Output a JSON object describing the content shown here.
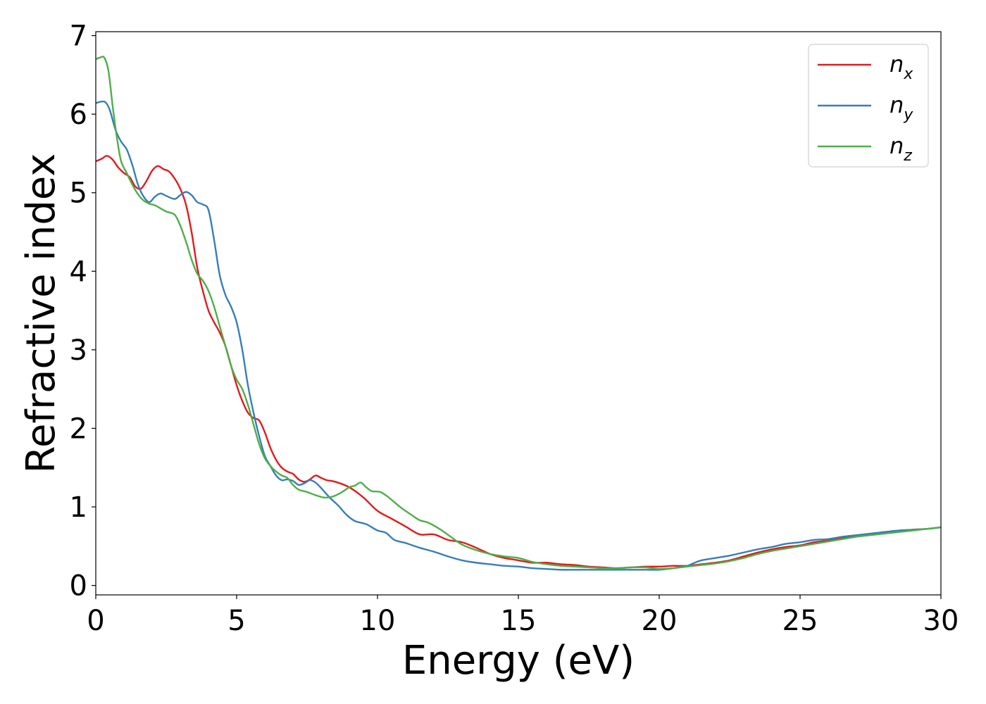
{
  "chart_data": {
    "type": "line",
    "xlabel": "Energy (eV)",
    "ylabel": "Refractive index",
    "xlim": [
      0,
      30
    ],
    "ylim": [
      -0.12,
      7.05
    ],
    "xticks": [
      "0",
      "5",
      "10",
      "15",
      "20",
      "25",
      "30"
    ],
    "yticks": [
      "0",
      "1",
      "2",
      "3",
      "4",
      "5",
      "6",
      "7"
    ],
    "grid": false,
    "legend_position": "top-right",
    "series": [
      {
        "name": "n",
        "subscript": "x",
        "color": "#e41a1c",
        "points": [
          [
            0,
            5.4
          ],
          [
            0.2,
            5.43
          ],
          [
            0.4,
            5.47
          ],
          [
            0.6,
            5.42
          ],
          [
            0.8,
            5.32
          ],
          [
            1.0,
            5.25
          ],
          [
            1.2,
            5.2
          ],
          [
            1.4,
            5.08
          ],
          [
            1.6,
            5.05
          ],
          [
            1.8,
            5.15
          ],
          [
            2.0,
            5.28
          ],
          [
            2.2,
            5.34
          ],
          [
            2.4,
            5.3
          ],
          [
            2.6,
            5.27
          ],
          [
            2.8,
            5.18
          ],
          [
            3.0,
            5.05
          ],
          [
            3.2,
            4.85
          ],
          [
            3.4,
            4.5
          ],
          [
            3.6,
            4.05
          ],
          [
            3.8,
            3.75
          ],
          [
            4.0,
            3.5
          ],
          [
            4.2,
            3.35
          ],
          [
            4.4,
            3.22
          ],
          [
            4.6,
            3.05
          ],
          [
            4.8,
            2.8
          ],
          [
            5.0,
            2.55
          ],
          [
            5.2,
            2.35
          ],
          [
            5.4,
            2.2
          ],
          [
            5.6,
            2.13
          ],
          [
            5.8,
            2.1
          ],
          [
            6.0,
            1.95
          ],
          [
            6.2,
            1.75
          ],
          [
            6.4,
            1.6
          ],
          [
            6.6,
            1.5
          ],
          [
            6.8,
            1.45
          ],
          [
            7.0,
            1.42
          ],
          [
            7.2,
            1.35
          ],
          [
            7.4,
            1.32
          ],
          [
            7.6,
            1.35
          ],
          [
            7.8,
            1.4
          ],
          [
            8.0,
            1.37
          ],
          [
            8.2,
            1.34
          ],
          [
            8.5,
            1.32
          ],
          [
            9.0,
            1.25
          ],
          [
            9.5,
            1.12
          ],
          [
            10.0,
            0.95
          ],
          [
            10.5,
            0.85
          ],
          [
            11.0,
            0.75
          ],
          [
            11.5,
            0.65
          ],
          [
            12.0,
            0.65
          ],
          [
            12.5,
            0.58
          ],
          [
            13.0,
            0.55
          ],
          [
            13.5,
            0.48
          ],
          [
            14.0,
            0.4
          ],
          [
            14.5,
            0.35
          ],
          [
            15.0,
            0.32
          ],
          [
            15.5,
            0.29
          ],
          [
            16.0,
            0.29
          ],
          [
            16.5,
            0.27
          ],
          [
            17.0,
            0.26
          ],
          [
            17.5,
            0.24
          ],
          [
            18.0,
            0.23
          ],
          [
            18.5,
            0.22
          ],
          [
            19.0,
            0.23
          ],
          [
            19.5,
            0.24
          ],
          [
            20.0,
            0.24
          ],
          [
            20.5,
            0.25
          ],
          [
            21.0,
            0.25
          ],
          [
            21.5,
            0.27
          ],
          [
            22.0,
            0.29
          ],
          [
            22.5,
            0.32
          ],
          [
            23.0,
            0.37
          ],
          [
            23.5,
            0.42
          ],
          [
            24.0,
            0.46
          ],
          [
            24.5,
            0.49
          ],
          [
            25.0,
            0.51
          ],
          [
            25.5,
            0.55
          ],
          [
            26.0,
            0.57
          ],
          [
            26.5,
            0.6
          ],
          [
            27.0,
            0.63
          ],
          [
            27.5,
            0.65
          ],
          [
            28.0,
            0.68
          ],
          [
            28.5,
            0.69
          ],
          [
            29.0,
            0.71
          ],
          [
            29.5,
            0.72
          ],
          [
            30.0,
            0.74
          ]
        ]
      },
      {
        "name": "n",
        "subscript": "y",
        "color": "#377eb8",
        "points": [
          [
            0,
            6.14
          ],
          [
            0.2,
            6.16
          ],
          [
            0.35,
            6.15
          ],
          [
            0.5,
            6.05
          ],
          [
            0.7,
            5.8
          ],
          [
            0.9,
            5.65
          ],
          [
            1.1,
            5.55
          ],
          [
            1.3,
            5.35
          ],
          [
            1.5,
            5.1
          ],
          [
            1.7,
            4.95
          ],
          [
            1.9,
            4.88
          ],
          [
            2.1,
            4.95
          ],
          [
            2.3,
            4.99
          ],
          [
            2.5,
            4.96
          ],
          [
            2.8,
            4.92
          ],
          [
            3.0,
            4.97
          ],
          [
            3.2,
            5.01
          ],
          [
            3.4,
            4.97
          ],
          [
            3.6,
            4.88
          ],
          [
            3.8,
            4.85
          ],
          [
            4.0,
            4.78
          ],
          [
            4.2,
            4.4
          ],
          [
            4.4,
            3.95
          ],
          [
            4.6,
            3.7
          ],
          [
            4.8,
            3.55
          ],
          [
            5.0,
            3.35
          ],
          [
            5.2,
            3.0
          ],
          [
            5.4,
            2.55
          ],
          [
            5.6,
            2.2
          ],
          [
            5.8,
            1.9
          ],
          [
            6.0,
            1.65
          ],
          [
            6.2,
            1.52
          ],
          [
            6.4,
            1.4
          ],
          [
            6.6,
            1.34
          ],
          [
            6.8,
            1.35
          ],
          [
            7.0,
            1.33
          ],
          [
            7.2,
            1.28
          ],
          [
            7.4,
            1.3
          ],
          [
            7.6,
            1.34
          ],
          [
            7.8,
            1.31
          ],
          [
            8.0,
            1.24
          ],
          [
            8.3,
            1.12
          ],
          [
            8.6,
            1.02
          ],
          [
            8.9,
            0.9
          ],
          [
            9.2,
            0.82
          ],
          [
            9.6,
            0.78
          ],
          [
            10.0,
            0.7
          ],
          [
            10.3,
            0.67
          ],
          [
            10.6,
            0.58
          ],
          [
            11.0,
            0.54
          ],
          [
            11.5,
            0.48
          ],
          [
            12.0,
            0.43
          ],
          [
            12.5,
            0.37
          ],
          [
            13.0,
            0.32
          ],
          [
            13.5,
            0.29
          ],
          [
            14.0,
            0.27
          ],
          [
            14.5,
            0.25
          ],
          [
            15.0,
            0.24
          ],
          [
            15.5,
            0.22
          ],
          [
            16.0,
            0.21
          ],
          [
            16.5,
            0.2
          ],
          [
            17.0,
            0.2
          ],
          [
            17.5,
            0.2
          ],
          [
            18.0,
            0.2
          ],
          [
            18.5,
            0.2
          ],
          [
            19.0,
            0.2
          ],
          [
            19.5,
            0.2
          ],
          [
            20.0,
            0.2
          ],
          [
            20.5,
            0.22
          ],
          [
            21.0,
            0.25
          ],
          [
            21.2,
            0.28
          ],
          [
            21.5,
            0.32
          ],
          [
            22.0,
            0.35
          ],
          [
            22.5,
            0.38
          ],
          [
            23.0,
            0.42
          ],
          [
            23.5,
            0.46
          ],
          [
            24.0,
            0.49
          ],
          [
            24.5,
            0.53
          ],
          [
            25.0,
            0.55
          ],
          [
            25.5,
            0.58
          ],
          [
            26.0,
            0.59
          ],
          [
            26.5,
            0.62
          ],
          [
            27.0,
            0.64
          ],
          [
            27.5,
            0.66
          ],
          [
            28.0,
            0.68
          ],
          [
            28.5,
            0.7
          ],
          [
            29.0,
            0.71
          ],
          [
            29.5,
            0.72
          ],
          [
            30.0,
            0.74
          ]
        ]
      },
      {
        "name": "n",
        "subscript": "z",
        "color": "#4daf4a",
        "points": [
          [
            0,
            6.7
          ],
          [
            0.15,
            6.72
          ],
          [
            0.3,
            6.72
          ],
          [
            0.45,
            6.55
          ],
          [
            0.6,
            6.1
          ],
          [
            0.75,
            5.7
          ],
          [
            0.9,
            5.4
          ],
          [
            1.1,
            5.25
          ],
          [
            1.3,
            5.1
          ],
          [
            1.5,
            4.98
          ],
          [
            1.7,
            4.9
          ],
          [
            1.9,
            4.86
          ],
          [
            2.1,
            4.84
          ],
          [
            2.3,
            4.8
          ],
          [
            2.5,
            4.76
          ],
          [
            2.8,
            4.72
          ],
          [
            3.0,
            4.58
          ],
          [
            3.2,
            4.38
          ],
          [
            3.4,
            4.15
          ],
          [
            3.6,
            3.97
          ],
          [
            3.8,
            3.88
          ],
          [
            4.0,
            3.75
          ],
          [
            4.2,
            3.55
          ],
          [
            4.4,
            3.3
          ],
          [
            4.6,
            3.05
          ],
          [
            4.8,
            2.8
          ],
          [
            5.0,
            2.62
          ],
          [
            5.2,
            2.5
          ],
          [
            5.4,
            2.3
          ],
          [
            5.6,
            2.05
          ],
          [
            5.8,
            1.8
          ],
          [
            6.0,
            1.62
          ],
          [
            6.2,
            1.52
          ],
          [
            6.4,
            1.45
          ],
          [
            6.6,
            1.4
          ],
          [
            6.8,
            1.37
          ],
          [
            7.0,
            1.28
          ],
          [
            7.2,
            1.22
          ],
          [
            7.5,
            1.19
          ],
          [
            7.8,
            1.15
          ],
          [
            8.1,
            1.12
          ],
          [
            8.4,
            1.13
          ],
          [
            8.7,
            1.18
          ],
          [
            9.0,
            1.25
          ],
          [
            9.2,
            1.27
          ],
          [
            9.4,
            1.31
          ],
          [
            9.6,
            1.25
          ],
          [
            9.8,
            1.2
          ],
          [
            10.1,
            1.19
          ],
          [
            10.4,
            1.12
          ],
          [
            10.8,
            1.0
          ],
          [
            11.2,
            0.9
          ],
          [
            11.5,
            0.83
          ],
          [
            11.8,
            0.8
          ],
          [
            12.2,
            0.72
          ],
          [
            12.6,
            0.62
          ],
          [
            13.0,
            0.52
          ],
          [
            13.5,
            0.45
          ],
          [
            14.0,
            0.4
          ],
          [
            14.5,
            0.37
          ],
          [
            15.0,
            0.35
          ],
          [
            15.5,
            0.3
          ],
          [
            16.0,
            0.27
          ],
          [
            16.5,
            0.25
          ],
          [
            17.0,
            0.24
          ],
          [
            17.5,
            0.23
          ],
          [
            18.0,
            0.22
          ],
          [
            18.5,
            0.22
          ],
          [
            19.0,
            0.23
          ],
          [
            19.5,
            0.23
          ],
          [
            20.0,
            0.21
          ],
          [
            20.5,
            0.22
          ],
          [
            21.0,
            0.24
          ],
          [
            21.5,
            0.26
          ],
          [
            22.0,
            0.28
          ],
          [
            22.5,
            0.31
          ],
          [
            23.0,
            0.35
          ],
          [
            23.5,
            0.4
          ],
          [
            24.0,
            0.44
          ],
          [
            24.5,
            0.47
          ],
          [
            25.0,
            0.5
          ],
          [
            25.5,
            0.53
          ],
          [
            26.0,
            0.56
          ],
          [
            26.5,
            0.59
          ],
          [
            27.0,
            0.62
          ],
          [
            27.5,
            0.64
          ],
          [
            28.0,
            0.66
          ],
          [
            28.5,
            0.68
          ],
          [
            29.0,
            0.7
          ],
          [
            29.5,
            0.72
          ],
          [
            30.0,
            0.74
          ]
        ]
      }
    ]
  }
}
